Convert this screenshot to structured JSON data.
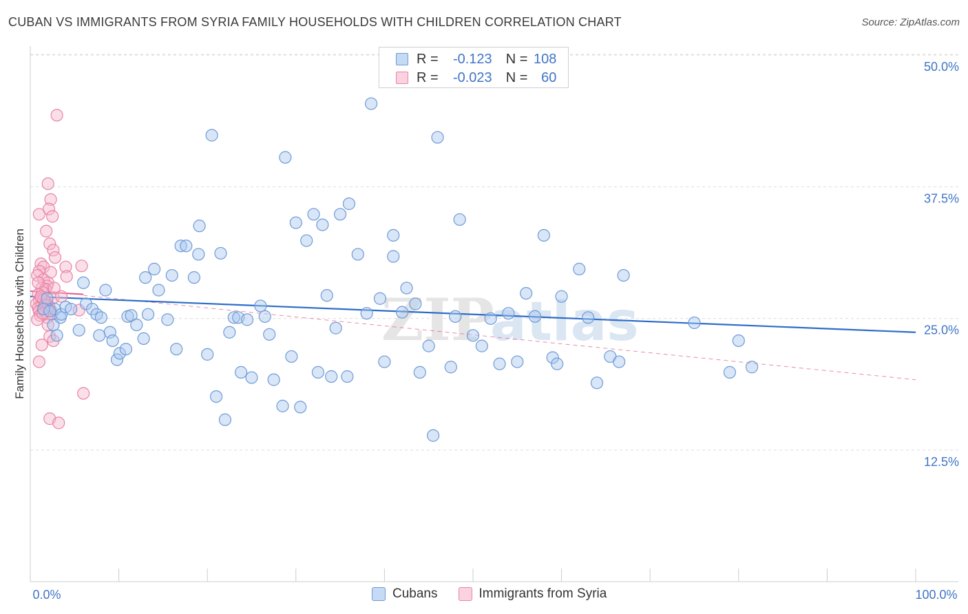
{
  "title": "CUBAN VS IMMIGRANTS FROM SYRIA FAMILY HOUSEHOLDS WITH CHILDREN CORRELATION CHART",
  "source": "Source: ZipAtlas.com",
  "legend_top": {
    "rows": [
      {
        "r_label": "R =",
        "r_value": "-0.123",
        "n_label": "N =",
        "n_value": "108"
      },
      {
        "r_label": "R =",
        "r_value": "-0.023",
        "n_label": "N =",
        "n_value": "60"
      }
    ]
  },
  "colors": {
    "cubans_fill": "#a9c8ef",
    "cubans_stroke": "#6f9ad6",
    "cubans_line": "#2d6cc9",
    "syria_fill": "#f7b7cc",
    "syria_stroke": "#e783a6",
    "syria_line": "#e05a8a",
    "tick_text": "#3f74c6",
    "grid": "#dddddd"
  },
  "chart_data": {
    "type": "scatter",
    "ylabel": "Family Households with Children",
    "xlim": [
      0,
      100
    ],
    "ylim": [
      0,
      52
    ],
    "x_ticks": [
      "0.0%",
      "100.0%"
    ],
    "y_ticks": [
      {
        "value": 12.5,
        "label": "12.5%"
      },
      {
        "value": 25.0,
        "label": "25.0%"
      },
      {
        "value": 37.5,
        "label": "37.5%"
      },
      {
        "value": 50.0,
        "label": "50.0%"
      }
    ],
    "grid": "horizontal dashed",
    "watermark": "ZIPatlas",
    "series": [
      {
        "name": "Cubans",
        "color": "#a9c8ef",
        "trend": {
          "x": [
            0,
            100
          ],
          "y": [
            28.2,
            24.8
          ]
        },
        "points": [
          [
            3.4,
            26.2
          ],
          [
            3.0,
            24.5
          ],
          [
            2.8,
            27.0
          ],
          [
            3.5,
            26.5
          ],
          [
            5.5,
            25.0
          ],
          [
            6.0,
            29.5
          ],
          [
            6.3,
            27.5
          ],
          [
            7.0,
            27.0
          ],
          [
            7.5,
            26.5
          ],
          [
            8.0,
            26.2
          ],
          [
            8.5,
            28.8
          ],
          [
            9.0,
            24.8
          ],
          [
            9.3,
            24.0
          ],
          [
            9.8,
            22.2
          ],
          [
            10.1,
            22.8
          ],
          [
            11.0,
            26.3
          ],
          [
            11.4,
            26.4
          ],
          [
            12.0,
            25.5
          ],
          [
            13.0,
            30.0
          ],
          [
            13.3,
            26.5
          ],
          [
            14.0,
            30.8
          ],
          [
            14.5,
            28.8
          ],
          [
            15.5,
            26.0
          ],
          [
            16.5,
            23.2
          ],
          [
            16.0,
            30.2
          ],
          [
            17.0,
            33.0
          ],
          [
            17.6,
            33.0
          ],
          [
            18.5,
            30.0
          ],
          [
            19.1,
            34.9
          ],
          [
            19.0,
            32.2
          ],
          [
            20.0,
            22.7
          ],
          [
            20.5,
            43.5
          ],
          [
            21.0,
            18.7
          ],
          [
            21.5,
            32.3
          ],
          [
            22.0,
            16.5
          ],
          [
            22.5,
            24.8
          ],
          [
            23.0,
            26.2
          ],
          [
            23.5,
            26.2
          ],
          [
            23.8,
            21.0
          ],
          [
            24.5,
            26.0
          ],
          [
            25.0,
            20.5
          ],
          [
            26.0,
            27.3
          ],
          [
            26.5,
            26.3
          ],
          [
            27.0,
            24.6
          ],
          [
            27.5,
            20.3
          ],
          [
            28.5,
            17.8
          ],
          [
            28.8,
            41.4
          ],
          [
            29.5,
            22.5
          ],
          [
            30.0,
            35.2
          ],
          [
            30.5,
            17.7
          ],
          [
            31.2,
            33.5
          ],
          [
            32.0,
            36.0
          ],
          [
            32.5,
            21.0
          ],
          [
            33.0,
            35.0
          ],
          [
            33.5,
            28.3
          ],
          [
            34.0,
            20.6
          ],
          [
            34.5,
            25.2
          ],
          [
            35.0,
            36.0
          ],
          [
            35.8,
            20.6
          ],
          [
            36.0,
            37.0
          ],
          [
            37.0,
            32.2
          ],
          [
            38.0,
            26.6
          ],
          [
            38.5,
            46.5
          ],
          [
            39.5,
            28.0
          ],
          [
            40.0,
            22.0
          ],
          [
            41.0,
            32.0
          ],
          [
            41.0,
            34.0
          ],
          [
            42.0,
            26.7
          ],
          [
            42.5,
            29.0
          ],
          [
            43.5,
            27.5
          ],
          [
            44.0,
            21.0
          ],
          [
            45.0,
            23.5
          ],
          [
            45.5,
            15.0
          ],
          [
            46.0,
            43.3
          ],
          [
            47.5,
            21.5
          ],
          [
            48.0,
            26.3
          ],
          [
            48.5,
            35.5
          ],
          [
            50.0,
            24.5
          ],
          [
            51.0,
            23.5
          ],
          [
            52.0,
            26.1
          ],
          [
            53.0,
            21.8
          ],
          [
            54.0,
            26.6
          ],
          [
            55.0,
            22.0
          ],
          [
            56.0,
            28.5
          ],
          [
            57.0,
            26.3
          ],
          [
            58.0,
            34.0
          ],
          [
            59.0,
            22.4
          ],
          [
            59.5,
            21.8
          ],
          [
            60.0,
            28.2
          ],
          [
            62.0,
            30.8
          ],
          [
            63.0,
            26.2
          ],
          [
            64.0,
            20.0
          ],
          [
            65.5,
            22.5
          ],
          [
            66.5,
            22.0
          ],
          [
            67.0,
            30.2
          ],
          [
            75.0,
            25.7
          ],
          [
            79.0,
            21.0
          ],
          [
            80.0,
            24.0
          ],
          [
            81.5,
            21.5
          ],
          [
            1.9,
            28.0
          ],
          [
            1.5,
            27.0
          ],
          [
            2.2,
            26.8
          ],
          [
            2.6,
            25.5
          ],
          [
            4.0,
            27.2
          ],
          [
            4.6,
            27.0
          ],
          [
            7.8,
            24.5
          ],
          [
            10.8,
            23.2
          ],
          [
            12.8,
            24.2
          ]
        ]
      },
      {
        "name": "Immigrants from Syria",
        "color": "#f7b7cc",
        "trend": {
          "x": [
            0,
            6
          ],
          "y": [
            28.7,
            28.4
          ]
        },
        "trend_dashed": {
          "x": [
            6,
            100
          ],
          "y": [
            28.3,
            20.3
          ]
        },
        "points": [
          [
            3.0,
            45.4
          ],
          [
            2.0,
            38.9
          ],
          [
            2.3,
            37.4
          ],
          [
            2.1,
            36.5
          ],
          [
            1.0,
            36.0
          ],
          [
            2.5,
            35.8
          ],
          [
            1.8,
            34.4
          ],
          [
            2.2,
            33.2
          ],
          [
            2.6,
            32.6
          ],
          [
            2.8,
            31.9
          ],
          [
            1.2,
            31.3
          ],
          [
            1.5,
            31.0
          ],
          [
            5.8,
            31.1
          ],
          [
            4.0,
            31.0
          ],
          [
            1.0,
            30.6
          ],
          [
            2.3,
            30.5
          ],
          [
            0.8,
            30.2
          ],
          [
            4.1,
            30.1
          ],
          [
            1.5,
            29.8
          ],
          [
            2.0,
            29.5
          ],
          [
            1.9,
            29.2
          ],
          [
            1.3,
            29.0
          ],
          [
            1.7,
            28.9
          ],
          [
            1.4,
            28.6
          ],
          [
            0.9,
            28.4
          ],
          [
            2.6,
            28.1
          ],
          [
            1.2,
            28.0
          ],
          [
            1.6,
            27.9
          ],
          [
            1.0,
            27.8
          ],
          [
            1.8,
            27.6
          ],
          [
            0.7,
            27.5
          ],
          [
            1.3,
            27.4
          ],
          [
            2.1,
            27.3
          ],
          [
            1.5,
            27.2
          ],
          [
            0.9,
            27.1
          ],
          [
            1.8,
            27.0
          ],
          [
            2.3,
            26.9
          ],
          [
            1.0,
            26.8
          ],
          [
            1.6,
            26.7
          ],
          [
            5.5,
            26.9
          ],
          [
            2.4,
            26.5
          ],
          [
            1.1,
            26.4
          ],
          [
            1.9,
            26.2
          ],
          [
            0.8,
            26.0
          ],
          [
            2.0,
            25.5
          ],
          [
            2.2,
            24.4
          ],
          [
            2.6,
            24.0
          ],
          [
            1.3,
            23.6
          ],
          [
            1.0,
            22.0
          ],
          [
            6.0,
            19.0
          ],
          [
            2.2,
            16.6
          ],
          [
            3.2,
            16.2
          ],
          [
            1.5,
            27.9
          ],
          [
            1.2,
            28.2
          ],
          [
            1.7,
            27.4
          ],
          [
            2.0,
            27.0
          ],
          [
            1.4,
            26.6
          ],
          [
            0.9,
            29.5
          ],
          [
            2.7,
            29.0
          ],
          [
            3.5,
            28.2
          ]
        ]
      }
    ]
  },
  "bottom_legend": {
    "items": [
      {
        "label": "Cubans"
      },
      {
        "label": "Immigrants from Syria"
      }
    ]
  }
}
